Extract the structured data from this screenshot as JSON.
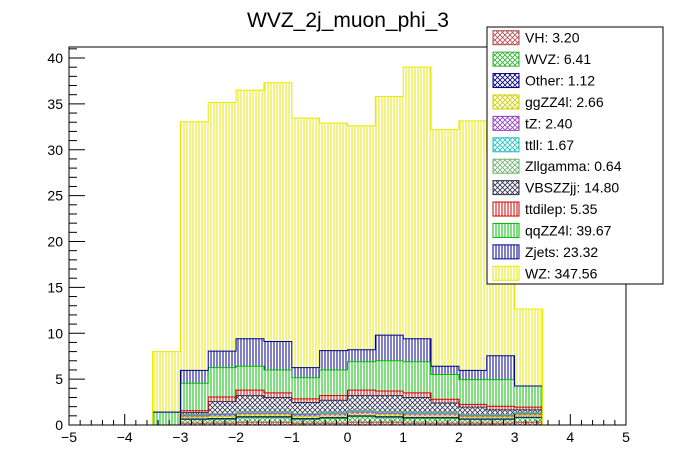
{
  "chart_data": {
    "type": "stacked-histogram",
    "title": "WVZ_2j_muon_phi_3",
    "xlabel": "",
    "ylabel": "",
    "xlim": [
      -5,
      5
    ],
    "ylim": [
      0,
      41.2
    ],
    "x_ticks": [
      "−5",
      "−4",
      "−3",
      "−2",
      "−1",
      "0",
      "1",
      "2",
      "3",
      "4",
      "5"
    ],
    "y_ticks": [
      "0",
      "5",
      "10",
      "15",
      "20",
      "25",
      "30",
      "35",
      "40"
    ],
    "bin_edges": [
      -3.5,
      -3.0,
      -2.5,
      -2.0,
      -1.5,
      -1.0,
      -0.5,
      0.0,
      0.5,
      1.0,
      1.5,
      2.0,
      2.5,
      3.0,
      3.5
    ],
    "series": [
      {
        "name": "VH",
        "label": "VH: 3.20",
        "color": "#b05050",
        "pattern": "cross",
        "values": [
          0,
          0.2,
          0.2,
          0.3,
          0.3,
          0.2,
          0.2,
          0.3,
          0.3,
          0.2,
          0.2,
          0.2,
          0.2,
          0.3
        ]
      },
      {
        "name": "WVZ",
        "label": "WVZ: 6.41",
        "color": "#30b030",
        "pattern": "cross",
        "values": [
          0,
          0.4,
          0.4,
          0.5,
          0.5,
          0.4,
          0.5,
          0.6,
          0.5,
          0.5,
          0.5,
          0.4,
          0.4,
          0.5
        ]
      },
      {
        "name": "Other",
        "label": "Other: 1.12",
        "color": "#000080",
        "pattern": "cross",
        "values": [
          0,
          0.05,
          0.1,
          0.1,
          0.1,
          0.1,
          0.1,
          0.1,
          0.1,
          0.1,
          0.1,
          0.05,
          0.05,
          0.05
        ]
      },
      {
        "name": "ggZZ4l",
        "label": "ggZZ4l: 2.66",
        "color": "#d0d000",
        "pattern": "cross",
        "values": [
          0,
          0.2,
          0.2,
          0.2,
          0.2,
          0.2,
          0.2,
          0.2,
          0.2,
          0.2,
          0.2,
          0.2,
          0.2,
          0.2
        ]
      },
      {
        "name": "tZ",
        "label": "tZ: 2.40",
        "color": "#9040c0",
        "pattern": "cross",
        "values": [
          0,
          0.15,
          0.2,
          0.2,
          0.2,
          0.2,
          0.2,
          0.2,
          0.2,
          0.2,
          0.2,
          0.15,
          0.15,
          0.15
        ]
      },
      {
        "name": "ttll",
        "label": "ttll: 1.67",
        "color": "#20c0c0",
        "pattern": "cross",
        "values": [
          0,
          0.1,
          0.1,
          0.15,
          0.15,
          0.1,
          0.15,
          0.15,
          0.15,
          0.15,
          0.15,
          0.1,
          0.1,
          0.1
        ]
      },
      {
        "name": "Zllgamma",
        "label": "Zllgamma: 0.64",
        "color": "#70b070",
        "pattern": "cross",
        "values": [
          0,
          0.05,
          0.05,
          0.05,
          0.05,
          0.05,
          0.05,
          0.05,
          0.05,
          0.05,
          0.05,
          0.05,
          0.05,
          0.05
        ]
      },
      {
        "name": "VBSZZjj",
        "label": "VBSZZjj: 14.80",
        "color": "#303050",
        "pattern": "cross",
        "values": [
          0,
          0.2,
          1.3,
          1.7,
          1.5,
          1.2,
          1.3,
          1.6,
          1.7,
          1.6,
          1.0,
          0.8,
          0.5,
          0.3
        ]
      },
      {
        "name": "ttdilep",
        "label": "ttdilep: 5.35",
        "color": "#d00000",
        "pattern": "vertical",
        "values": [
          0,
          0.2,
          0.5,
          0.6,
          0.5,
          0.4,
          0.5,
          0.6,
          0.5,
          0.5,
          0.4,
          0.3,
          0.4,
          0.3
        ]
      },
      {
        "name": "qqZZ4l",
        "label": "qqZZ4l: 39.67",
        "color": "#00c000",
        "pattern": "vertical",
        "values": [
          1.4,
          3.0,
          3.2,
          2.6,
          2.5,
          2.3,
          2.8,
          3.1,
          3.3,
          3.4,
          2.7,
          2.7,
          2.9,
          2.3
        ]
      },
      {
        "name": "Zjets",
        "label": "Zjets: 23.32",
        "color": "#000090",
        "pattern": "vertical",
        "values": [
          0,
          1.4,
          1.8,
          3.0,
          3.1,
          1.1,
          2.1,
          1.3,
          2.8,
          2.5,
          0.9,
          1.0,
          2.6,
          0
        ]
      },
      {
        "name": "WZ",
        "label": "WZ: 347.56",
        "color": "#e8e800",
        "pattern": "vertical",
        "values": [
          6.6,
          27.1,
          27.1,
          27.1,
          28.2,
          27.2,
          24.8,
          24.4,
          26.0,
          29.6,
          25.8,
          27.2,
          22.0,
          8.4
        ]
      }
    ]
  }
}
